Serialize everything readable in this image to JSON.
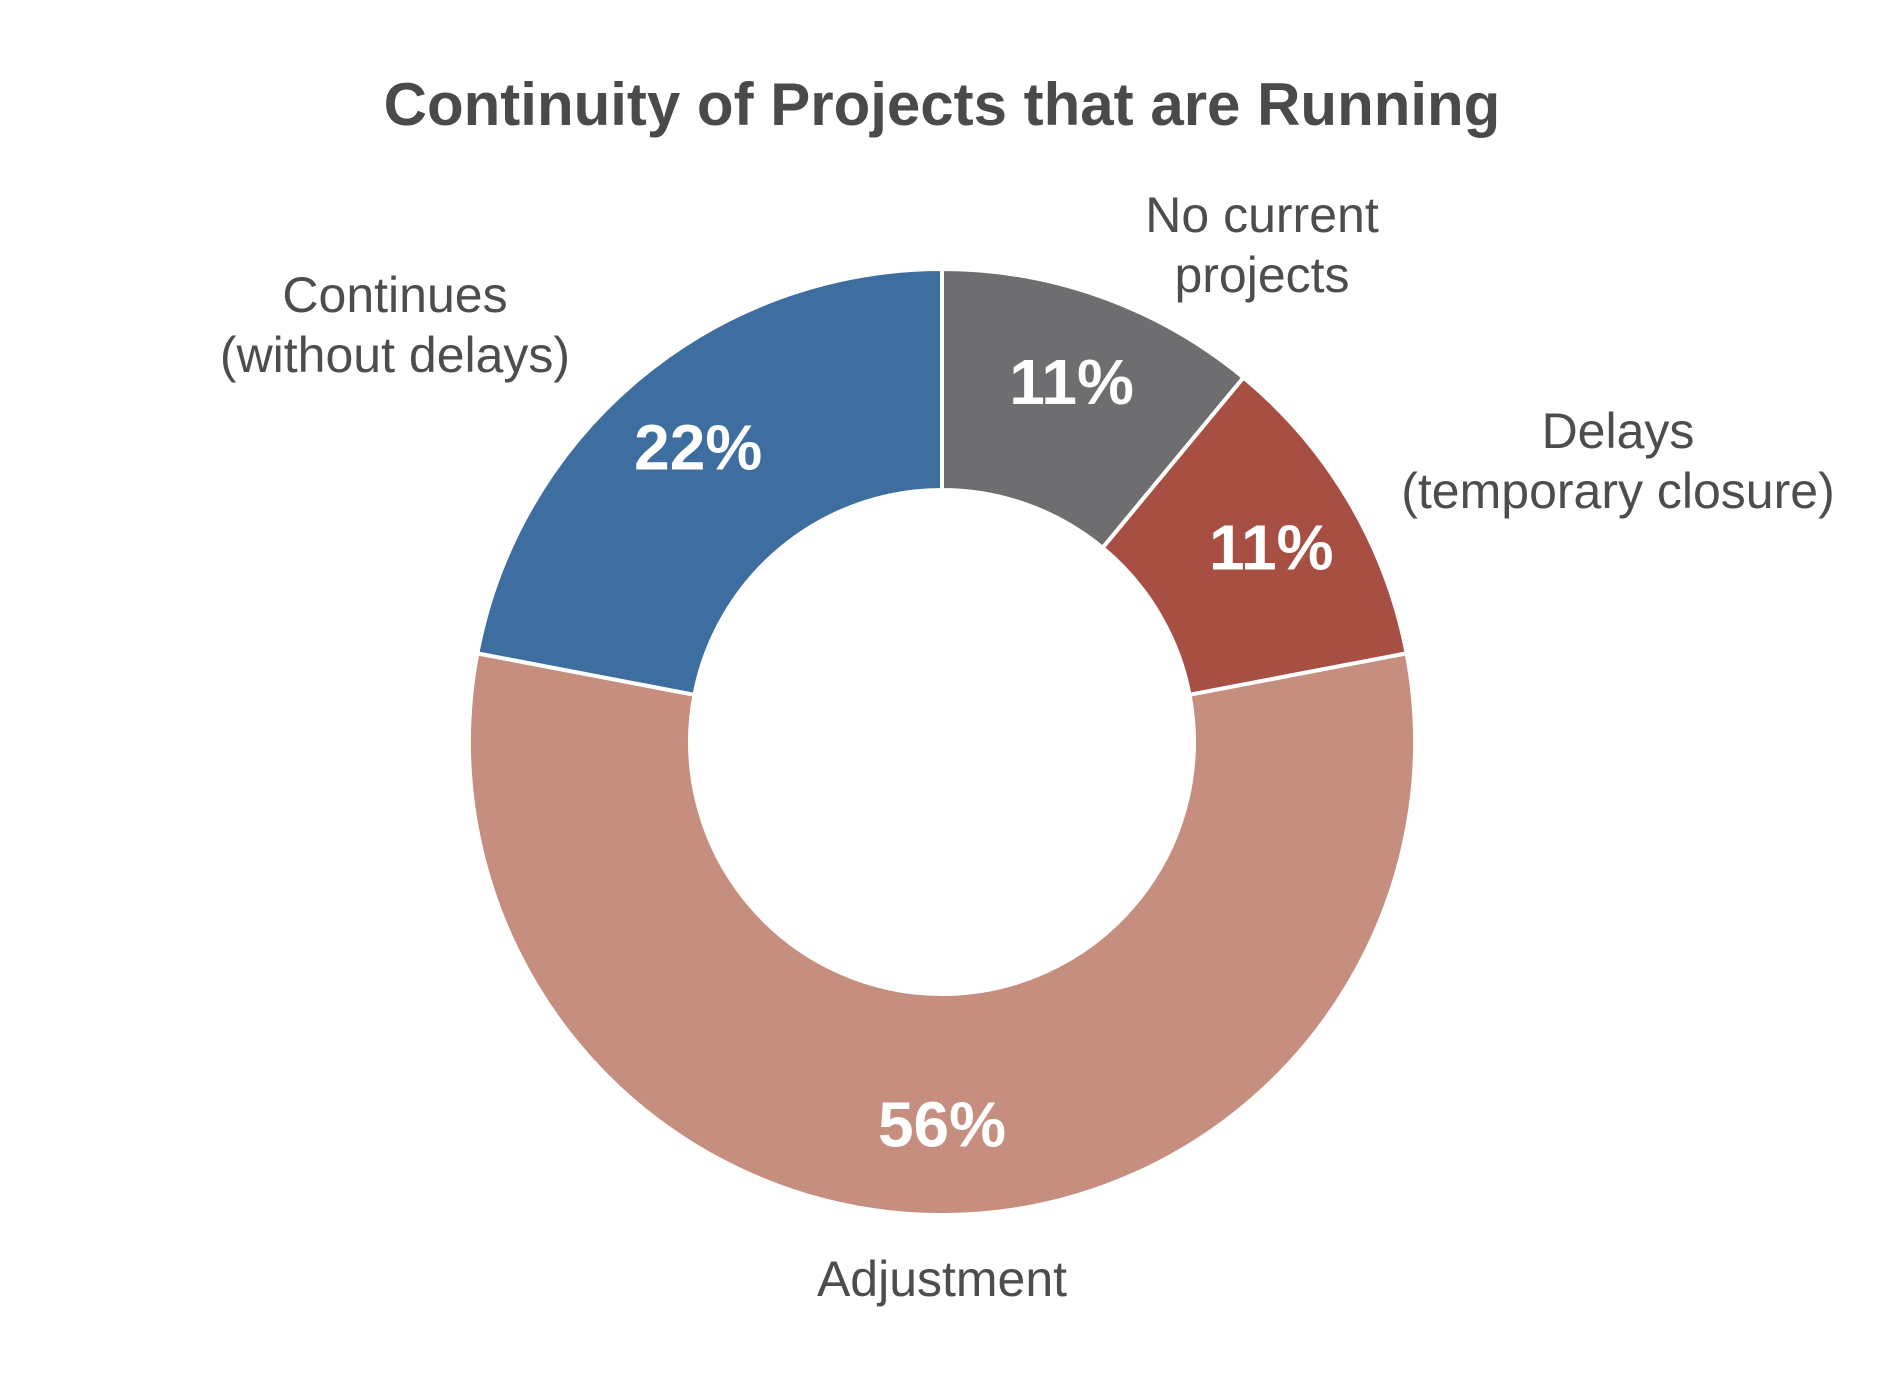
{
  "chart_data": {
    "type": "pie",
    "variant": "donut",
    "title": "Continuity of Projects that are Running",
    "slices": [
      {
        "label": "No current projects",
        "label_lines": [
          "No current",
          "projects"
        ],
        "value": 11,
        "value_label": "11%",
        "color": "#6e6e70"
      },
      {
        "label": "Delays (temporary closure)",
        "label_lines": [
          "Delays",
          "(temporary closure)"
        ],
        "value": 11,
        "value_label": "11%",
        "color": "#a84f44"
      },
      {
        "label": "Adjustment",
        "label_lines": [
          "Adjustment"
        ],
        "value": 56,
        "value_label": "56%",
        "color": "#c58e7e"
      },
      {
        "label": "Continues (without delays)",
        "label_lines": [
          "Continues",
          "(without delays)"
        ],
        "value": 22,
        "value_label": "22%",
        "color": "#3e6d9f"
      }
    ],
    "legend": "none",
    "start_angle": "12 o'clock",
    "direction": "clockwise"
  }
}
